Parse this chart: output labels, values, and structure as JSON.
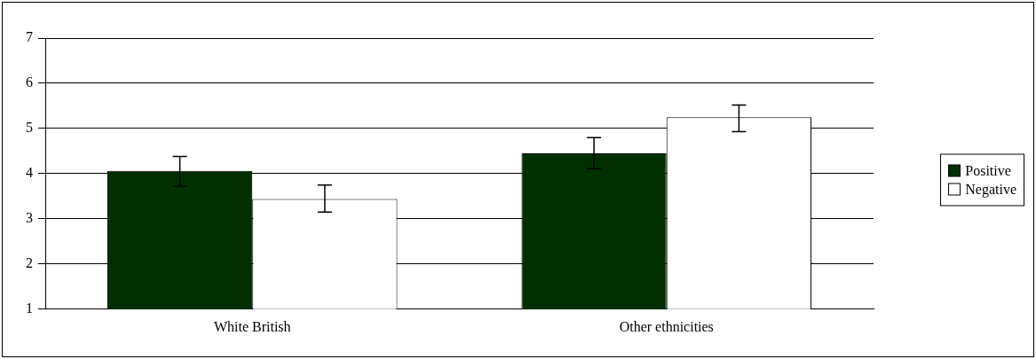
{
  "chart_data": {
    "type": "bar",
    "categories": [
      "White British",
      "Other ethnicities"
    ],
    "series": [
      {
        "name": "Positive",
        "color": "#003000",
        "values": [
          4.06,
          4.45
        ],
        "errors": [
          [
            3.72,
            4.38
          ],
          [
            4.11,
            4.8
          ]
        ]
      },
      {
        "name": "Negative",
        "color": "#ffffff",
        "values": [
          3.44,
          5.25
        ],
        "errors": [
          [
            3.15,
            3.75
          ],
          [
            4.93,
            5.52
          ]
        ]
      }
    ],
    "ylim": [
      1,
      7
    ],
    "yticks": [
      1,
      2,
      3,
      4,
      5,
      6,
      7
    ],
    "grid": "y",
    "legend": "right"
  }
}
